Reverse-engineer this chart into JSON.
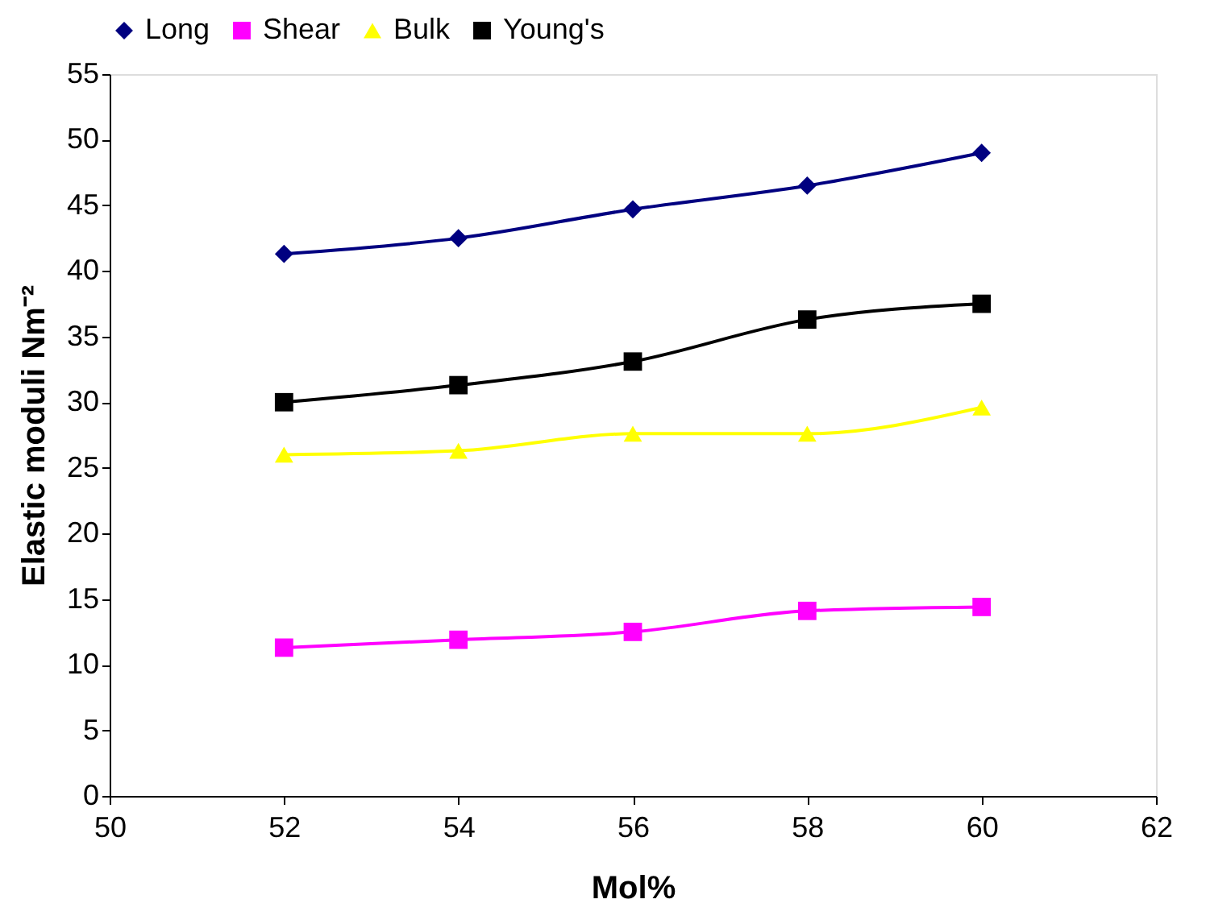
{
  "chart_data": {
    "type": "line",
    "xlabel": "Mol%",
    "ylabel": "Elastic moduli Nm⁻²",
    "x": [
      52,
      54,
      56,
      58,
      60
    ],
    "series": [
      {
        "name": "Long",
        "color": "#000080",
        "marker": "diamond",
        "values": [
          41.3,
          42.5,
          44.7,
          46.5,
          49.0
        ]
      },
      {
        "name": "Shear",
        "color": "#ff00ff",
        "marker": "square",
        "values": [
          11.3,
          11.9,
          12.5,
          14.1,
          14.4
        ]
      },
      {
        "name": "Bulk",
        "color": "#ffff00",
        "marker": "triangle",
        "values": [
          26.0,
          26.3,
          27.6,
          27.6,
          29.6
        ]
      },
      {
        "name": "Young's",
        "color": "#000000",
        "marker": "square",
        "values": [
          30.0,
          31.3,
          33.1,
          36.3,
          37.5
        ]
      }
    ],
    "xlim": [
      50,
      62
    ],
    "xticks": [
      50,
      52,
      54,
      56,
      58,
      60,
      62
    ],
    "ylim": [
      0,
      55
    ],
    "yticks": [
      0,
      5,
      10,
      15,
      20,
      25,
      30,
      35,
      40,
      45,
      50,
      55
    ],
    "grid": false,
    "legend": "top",
    "line_style": "solid"
  }
}
